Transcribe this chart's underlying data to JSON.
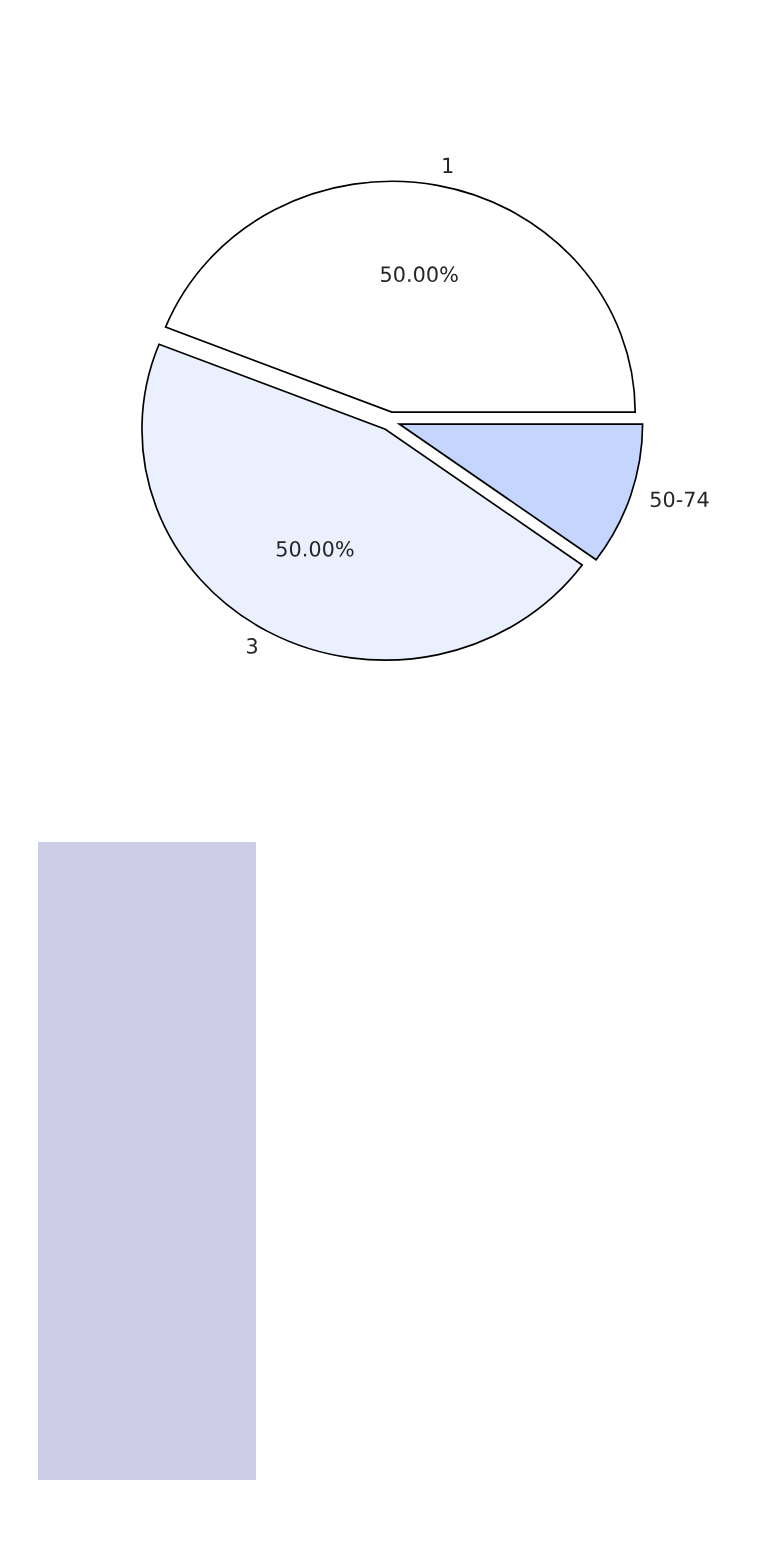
{
  "chart_data": {
    "type": "pie",
    "categories": [
      "1",
      "3",
      "50-74"
    ],
    "values": [
      44,
      46,
      10
    ],
    "annotations": [
      "50.00%",
      "50.00%"
    ],
    "colors": [
      "#ffffff",
      "#eaf0fe",
      "#c4d6fe"
    ]
  }
}
